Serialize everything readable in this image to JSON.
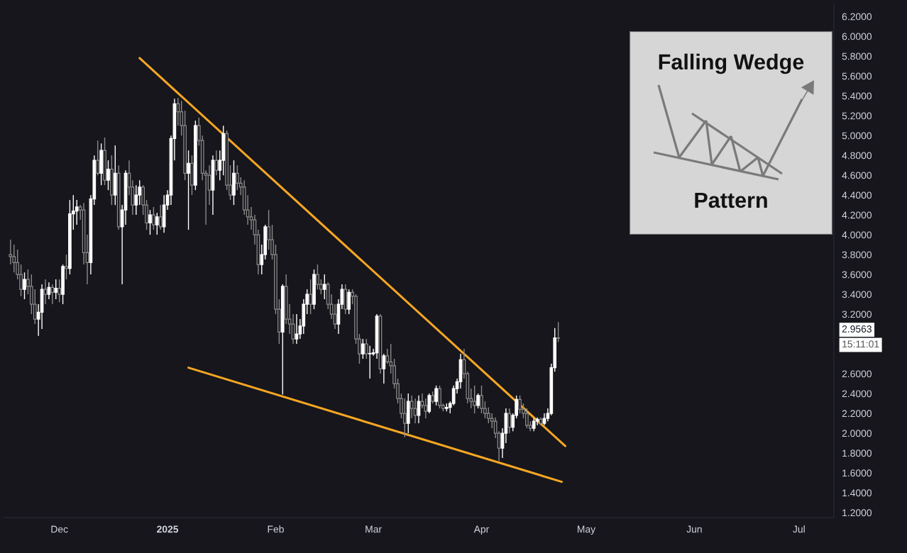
{
  "chart_data": {
    "type": "candlestick",
    "x": [
      "2024-11-17",
      "2024-11-18",
      "2024-11-19",
      "2024-11-20",
      "2024-11-21",
      "2024-11-22",
      "2024-11-23",
      "2024-11-24",
      "2024-11-25",
      "2024-11-26",
      "2024-11-27",
      "2024-11-28",
      "2024-11-29",
      "2024-11-30",
      "2024-12-01",
      "2024-12-02",
      "2024-12-03",
      "2024-12-04",
      "2024-12-05",
      "2024-12-06",
      "2024-12-07",
      "2024-12-08",
      "2024-12-09",
      "2024-12-10",
      "2024-12-11",
      "2024-12-12",
      "2024-12-13",
      "2024-12-14",
      "2024-12-15",
      "2024-12-16",
      "2024-12-17",
      "2024-12-18",
      "2024-12-19",
      "2024-12-20",
      "2024-12-21",
      "2024-12-22",
      "2024-12-23",
      "2024-12-24",
      "2024-12-25",
      "2024-12-26",
      "2024-12-27",
      "2024-12-28",
      "2024-12-29",
      "2024-12-30",
      "2024-12-31",
      "2025-01-01",
      "2025-01-02",
      "2025-01-03",
      "2025-01-04",
      "2025-01-05",
      "2025-01-06",
      "2025-01-07",
      "2025-01-08",
      "2025-01-09",
      "2025-01-10",
      "2025-01-11",
      "2025-01-12",
      "2025-01-13",
      "2025-01-14",
      "2025-01-15",
      "2025-01-16",
      "2025-01-17",
      "2025-01-18",
      "2025-01-19",
      "2025-01-20",
      "2025-01-21",
      "2025-01-22",
      "2025-01-23",
      "2025-01-24",
      "2025-01-25",
      "2025-01-26",
      "2025-01-27",
      "2025-01-28",
      "2025-01-29",
      "2025-01-30",
      "2025-01-31",
      "2025-02-01",
      "2025-02-02",
      "2025-02-03",
      "2025-02-04",
      "2025-02-05",
      "2025-02-06",
      "2025-02-07",
      "2025-02-08",
      "2025-02-09",
      "2025-02-10",
      "2025-02-11",
      "2025-02-12",
      "2025-02-13",
      "2025-02-14",
      "2025-02-15",
      "2025-02-16",
      "2025-02-17",
      "2025-02-18",
      "2025-02-19",
      "2025-02-20",
      "2025-02-21",
      "2025-02-22",
      "2025-02-23",
      "2025-02-24",
      "2025-02-25",
      "2025-02-26",
      "2025-02-27",
      "2025-02-28",
      "2025-03-01",
      "2025-03-02",
      "2025-03-03",
      "2025-03-04",
      "2025-03-05",
      "2025-03-06",
      "2025-03-07",
      "2025-03-08",
      "2025-03-09",
      "2025-03-10",
      "2025-03-11",
      "2025-03-12",
      "2025-03-13",
      "2025-03-14",
      "2025-03-15",
      "2025-03-16",
      "2025-03-17",
      "2025-03-18",
      "2025-03-19",
      "2025-03-20",
      "2025-03-21",
      "2025-03-22",
      "2025-03-23",
      "2025-03-24",
      "2025-03-25",
      "2025-03-26",
      "2025-03-27",
      "2025-03-28",
      "2025-03-29",
      "2025-03-30",
      "2025-03-31",
      "2025-04-01",
      "2025-04-02",
      "2025-04-03",
      "2025-04-04",
      "2025-04-05",
      "2025-04-06",
      "2025-04-07",
      "2025-04-08",
      "2025-04-09",
      "2025-04-10",
      "2025-04-11",
      "2025-04-12",
      "2025-04-13",
      "2025-04-14",
      "2025-04-15",
      "2025-04-16",
      "2025-04-17",
      "2025-04-18",
      "2025-04-19",
      "2025-04-20",
      "2025-04-21",
      "2025-04-22",
      "2025-04-23"
    ],
    "ohlc": [
      [
        3.8,
        3.95,
        3.7,
        3.78
      ],
      [
        3.78,
        3.9,
        3.62,
        3.72
      ],
      [
        3.72,
        3.85,
        3.55,
        3.6
      ],
      [
        3.6,
        3.7,
        3.38,
        3.45
      ],
      [
        3.45,
        3.62,
        3.35,
        3.55
      ],
      [
        3.55,
        3.65,
        3.4,
        3.48
      ],
      [
        3.48,
        3.6,
        3.2,
        3.3
      ],
      [
        3.3,
        3.45,
        3.1,
        3.15
      ],
      [
        3.15,
        3.3,
        2.98,
        3.22
      ],
      [
        3.22,
        3.5,
        3.05,
        3.45
      ],
      [
        3.45,
        3.55,
        3.3,
        3.4
      ],
      [
        3.4,
        3.52,
        3.35,
        3.47
      ],
      [
        3.47,
        3.5,
        3.3,
        3.42
      ],
      [
        3.42,
        3.55,
        3.35,
        3.46
      ],
      [
        3.46,
        3.55,
        3.32,
        3.4
      ],
      [
        3.4,
        3.7,
        3.3,
        3.68
      ],
      [
        3.68,
        3.8,
        3.55,
        3.66
      ],
      [
        3.66,
        4.35,
        3.6,
        4.21
      ],
      [
        4.21,
        4.4,
        4.05,
        4.24
      ],
      [
        4.24,
        4.35,
        4.1,
        4.28
      ],
      [
        4.28,
        4.3,
        4.15,
        4.25
      ],
      [
        4.25,
        4.32,
        3.7,
        3.82
      ],
      [
        3.82,
        4.0,
        3.5,
        3.72
      ],
      [
        3.72,
        4.4,
        3.6,
        4.36
      ],
      [
        4.36,
        4.8,
        4.3,
        4.75
      ],
      [
        4.75,
        4.95,
        4.6,
        4.62
      ],
      [
        4.62,
        4.92,
        4.5,
        4.85
      ],
      [
        4.85,
        4.98,
        4.5,
        4.55
      ],
      [
        4.55,
        4.75,
        4.45,
        4.66
      ],
      [
        4.66,
        4.8,
        4.3,
        4.4
      ],
      [
        4.4,
        4.9,
        4.3,
        4.62
      ],
      [
        4.62,
        4.7,
        4.05,
        4.08
      ],
      [
        4.08,
        4.3,
        3.5,
        4.25
      ],
      [
        4.25,
        4.65,
        4.1,
        4.62
      ],
      [
        4.62,
        4.75,
        4.4,
        4.48
      ],
      [
        4.48,
        4.55,
        4.2,
        4.3
      ],
      [
        4.3,
        4.5,
        4.2,
        4.4
      ],
      [
        4.4,
        4.55,
        4.3,
        4.48
      ],
      [
        4.48,
        4.5,
        4.2,
        4.3
      ],
      [
        4.3,
        4.35,
        4.05,
        4.12
      ],
      [
        4.12,
        4.25,
        4.0,
        4.2
      ],
      [
        4.2,
        4.28,
        4.05,
        4.1
      ],
      [
        4.1,
        4.22,
        4.0,
        4.18
      ],
      [
        4.18,
        4.3,
        4.05,
        4.08
      ],
      [
        4.08,
        4.4,
        4.02,
        4.3
      ],
      [
        4.3,
        4.45,
        4.25,
        4.4
      ],
      [
        4.4,
        5.0,
        4.3,
        4.97
      ],
      [
        4.97,
        5.37,
        4.75,
        5.32
      ],
      [
        5.32,
        5.38,
        5.1,
        5.24
      ],
      [
        5.24,
        5.35,
        5.0,
        5.1
      ],
      [
        5.1,
        5.25,
        4.55,
        4.62
      ],
      [
        4.62,
        4.85,
        4.05,
        4.72
      ],
      [
        4.72,
        4.8,
        4.4,
        4.5
      ],
      [
        4.5,
        5.15,
        4.45,
        5.1
      ],
      [
        5.1,
        5.18,
        4.9,
        4.95
      ],
      [
        4.95,
        5.0,
        4.55,
        4.62
      ],
      [
        4.62,
        4.65,
        4.1,
        4.6
      ],
      [
        4.6,
        4.7,
        4.3,
        4.45
      ],
      [
        4.45,
        4.8,
        4.2,
        4.75
      ],
      [
        4.75,
        4.85,
        4.6,
        4.65
      ],
      [
        4.65,
        4.85,
        4.55,
        4.75
      ],
      [
        4.75,
        5.1,
        4.6,
        5.02
      ],
      [
        5.02,
        5.05,
        4.45,
        4.5
      ],
      [
        4.5,
        4.7,
        4.35,
        4.4
      ],
      [
        4.4,
        4.75,
        4.3,
        4.62
      ],
      [
        4.62,
        4.7,
        4.45,
        4.52
      ],
      [
        4.52,
        4.58,
        4.4,
        4.48
      ],
      [
        4.48,
        4.55,
        4.2,
        4.25
      ],
      [
        4.25,
        4.4,
        4.1,
        4.18
      ],
      [
        4.18,
        4.28,
        4.05,
        4.15
      ],
      [
        4.15,
        4.2,
        3.9,
        4.0
      ],
      [
        4.0,
        4.05,
        3.6,
        3.7
      ],
      [
        3.7,
        3.9,
        3.6,
        3.8
      ],
      [
        3.8,
        4.1,
        3.75,
        4.08
      ],
      [
        4.08,
        4.25,
        3.85,
        3.95
      ],
      [
        3.95,
        4.1,
        3.75,
        3.8
      ],
      [
        3.8,
        3.9,
        3.2,
        3.25
      ],
      [
        3.25,
        3.35,
        2.9,
        3.02
      ],
      [
        3.02,
        3.5,
        2.39,
        3.48
      ],
      [
        3.48,
        3.6,
        3.1,
        3.15
      ],
      [
        3.15,
        3.3,
        3.0,
        3.1
      ],
      [
        3.1,
        3.2,
        2.9,
        2.95
      ],
      [
        2.95,
        3.2,
        2.9,
        3.0
      ],
      [
        3.0,
        3.15,
        2.95,
        3.08
      ],
      [
        3.08,
        3.35,
        3.0,
        3.3
      ],
      [
        3.3,
        3.45,
        3.2,
        3.4
      ],
      [
        3.4,
        3.55,
        3.2,
        3.3
      ],
      [
        3.3,
        3.65,
        3.25,
        3.6
      ],
      [
        3.6,
        3.7,
        3.45,
        3.5
      ],
      [
        3.5,
        3.55,
        3.4,
        3.45
      ],
      [
        3.45,
        3.6,
        3.35,
        3.5
      ],
      [
        3.5,
        3.52,
        3.25,
        3.3
      ],
      [
        3.3,
        3.4,
        3.15,
        3.2
      ],
      [
        3.2,
        3.3,
        3.05,
        3.1
      ],
      [
        3.1,
        3.35,
        3.0,
        3.3
      ],
      [
        3.3,
        3.5,
        3.25,
        3.45
      ],
      [
        3.45,
        3.5,
        3.2,
        3.25
      ],
      [
        3.25,
        3.45,
        3.2,
        3.42
      ],
      [
        3.42,
        3.45,
        3.3,
        3.38
      ],
      [
        3.38,
        3.4,
        2.9,
        2.95
      ],
      [
        2.95,
        3.0,
        2.7,
        2.8
      ],
      [
        2.8,
        2.95,
        2.75,
        2.9
      ],
      [
        2.9,
        2.95,
        2.75,
        2.8
      ],
      [
        2.8,
        2.88,
        2.55,
        2.8
      ],
      [
        2.8,
        2.85,
        2.78,
        2.81
      ],
      [
        2.81,
        3.2,
        2.75,
        3.18
      ],
      [
        3.18,
        3.2,
        2.6,
        2.65
      ],
      [
        2.65,
        2.8,
        2.5,
        2.78
      ],
      [
        2.78,
        2.85,
        2.7,
        2.72
      ],
      [
        2.72,
        2.9,
        2.6,
        2.68
      ],
      [
        2.68,
        2.75,
        2.45,
        2.5
      ],
      [
        2.5,
        2.55,
        2.3,
        2.35
      ],
      [
        2.35,
        2.4,
        2.15,
        2.2
      ],
      [
        2.2,
        2.35,
        1.96,
        2.1
      ],
      [
        2.1,
        2.4,
        2.0,
        2.32
      ],
      [
        2.32,
        2.38,
        2.15,
        2.25
      ],
      [
        2.25,
        2.35,
        2.1,
        2.18
      ],
      [
        2.18,
        2.38,
        2.1,
        2.32
      ],
      [
        2.32,
        2.4,
        2.25,
        2.28
      ],
      [
        2.28,
        2.35,
        2.15,
        2.22
      ],
      [
        2.22,
        2.4,
        2.2,
        2.38
      ],
      [
        2.38,
        2.42,
        2.3,
        2.32
      ],
      [
        2.32,
        2.48,
        2.28,
        2.45
      ],
      [
        2.45,
        2.48,
        2.25,
        2.28
      ],
      [
        2.28,
        2.3,
        2.22,
        2.25
      ],
      [
        2.25,
        2.3,
        2.22,
        2.26
      ],
      [
        2.26,
        2.32,
        2.2,
        2.3
      ],
      [
        2.3,
        2.48,
        2.28,
        2.45
      ],
      [
        2.45,
        2.55,
        2.4,
        2.52
      ],
      [
        2.52,
        2.8,
        2.45,
        2.74
      ],
      [
        2.74,
        2.85,
        2.55,
        2.6
      ],
      [
        2.6,
        2.62,
        2.3,
        2.35
      ],
      [
        2.35,
        2.45,
        2.25,
        2.32
      ],
      [
        2.32,
        2.48,
        2.2,
        2.28
      ],
      [
        2.28,
        2.4,
        2.25,
        2.38
      ],
      [
        2.38,
        2.48,
        2.2,
        2.25
      ],
      [
        2.25,
        2.32,
        2.15,
        2.2
      ],
      [
        2.2,
        2.26,
        2.1,
        2.15
      ],
      [
        2.15,
        2.2,
        2.05,
        2.12
      ],
      [
        2.12,
        2.16,
        1.95,
        2.0
      ],
      [
        2.0,
        2.02,
        1.72,
        1.85
      ],
      [
        1.85,
        2.05,
        1.75,
        2.0
      ],
      [
        2.0,
        2.25,
        1.9,
        2.2
      ],
      [
        2.2,
        2.25,
        2.0,
        2.06
      ],
      [
        2.06,
        2.2,
        2.02,
        2.18
      ],
      [
        2.18,
        2.38,
        2.15,
        2.34
      ],
      [
        2.34,
        2.38,
        2.2,
        2.24
      ],
      [
        2.24,
        2.3,
        2.15,
        2.2
      ],
      [
        2.2,
        2.25,
        2.05,
        2.08
      ],
      [
        2.08,
        2.12,
        2.02,
        2.05
      ],
      [
        2.05,
        2.15,
        2.02,
        2.12
      ],
      [
        2.12,
        2.16,
        2.08,
        2.14
      ],
      [
        2.14,
        2.16,
        2.08,
        2.1
      ],
      [
        2.1,
        2.2,
        2.08,
        2.15
      ],
      [
        2.15,
        2.25,
        2.12,
        2.2
      ],
      [
        2.2,
        2.7,
        2.18,
        2.66
      ],
      [
        2.66,
        3.06,
        2.62,
        2.96
      ],
      [
        2.96,
        3.12,
        2.92,
        2.9563
      ]
    ],
    "series": [
      {
        "type": "line",
        "color": "#f5a623",
        "x": [
          "2024-12-24",
          "2025-04-25"
        ],
        "values": [
          5.78,
          1.87
        ]
      },
      {
        "type": "line",
        "color": "#f5a623",
        "x": [
          "2025-01-07",
          "2025-04-24"
        ],
        "values": [
          2.66,
          1.51
        ]
      }
    ],
    "xlim": [
      "2024-11-15",
      "2025-07-11"
    ],
    "xticks": [
      {
        "value": "2024-12-01",
        "label": "Dec"
      },
      {
        "value": "2025-01-01",
        "label": "2025"
      },
      {
        "value": "2025-02-01",
        "label": "Feb"
      },
      {
        "value": "2025-03-01",
        "label": "Mar"
      },
      {
        "value": "2025-04-01",
        "label": "Apr"
      },
      {
        "value": "2025-05-01",
        "label": "May"
      },
      {
        "value": "2025-06-01",
        "label": "Jun"
      },
      {
        "value": "2025-07-01",
        "label": "Jul"
      }
    ],
    "ylim": [
      1.15,
      6.33
    ],
    "yticks": [
      {
        "value": 1.2,
        "label": "1.2000"
      },
      {
        "value": 1.4,
        "label": "1.4000"
      },
      {
        "value": 1.6,
        "label": "1.6000"
      },
      {
        "value": 1.8,
        "label": "1.8000"
      },
      {
        "value": 2.0,
        "label": "2.0000"
      },
      {
        "value": 2.2,
        "label": "2.2000"
      },
      {
        "value": 2.4,
        "label": "2.4000"
      },
      {
        "value": 2.6,
        "label": "2.6000"
      },
      {
        "value": 3.2,
        "label": "3.2000"
      },
      {
        "value": 3.4,
        "label": "3.4000"
      },
      {
        "value": 3.6,
        "label": "3.6000"
      },
      {
        "value": 3.8,
        "label": "3.8000"
      },
      {
        "value": 4.0,
        "label": "4.0000"
      },
      {
        "value": 4.2,
        "label": "4.2000"
      },
      {
        "value": 4.4,
        "label": "4.4000"
      },
      {
        "value": 4.6,
        "label": "4.6000"
      },
      {
        "value": 4.8,
        "label": "4.8000"
      },
      {
        "value": 5.0,
        "label": "5.0000"
      },
      {
        "value": 5.2,
        "label": "5.2000"
      },
      {
        "value": 5.4,
        "label": "5.4000"
      },
      {
        "value": 5.6,
        "label": "5.6000"
      },
      {
        "value": 5.8,
        "label": "5.8000"
      },
      {
        "value": 6.0,
        "label": "6.0000"
      },
      {
        "value": 6.2,
        "label": "6.2000"
      }
    ],
    "grid": false,
    "legend": false,
    "annotations": [
      "2.9563",
      "15:11:01",
      "Falling Wedge",
      "Pattern"
    ]
  }
}
